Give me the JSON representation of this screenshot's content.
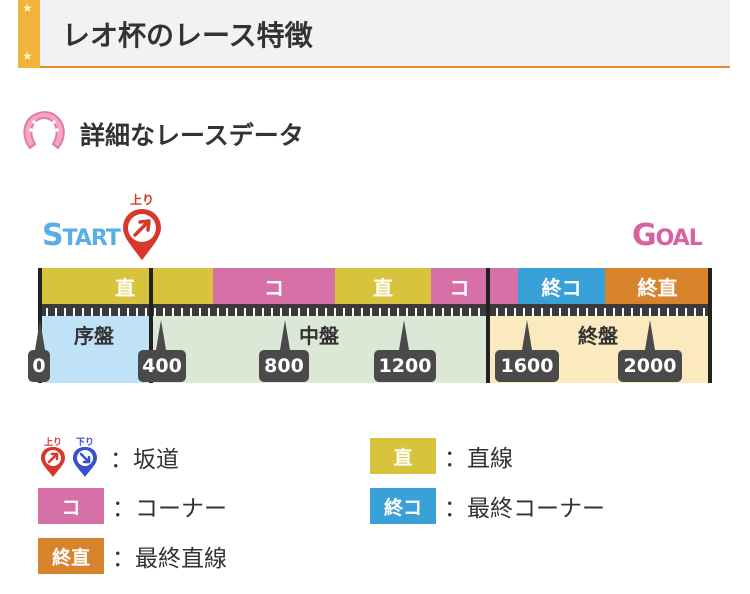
{
  "header": {
    "title": "レオ杯のレース特徴"
  },
  "section": {
    "title": "詳細なレースデータ"
  },
  "course": {
    "start_label_big": "S",
    "start_label_rest": "TART",
    "goal_label_big": "G",
    "goal_label_rest": "OAL",
    "slope_pin_label": "上り",
    "segments": [
      {
        "label": "直",
        "color": "#d8c43c"
      },
      {
        "label": "",
        "color": "#d8c43c"
      },
      {
        "label": "コ",
        "color": "#d870a8"
      },
      {
        "label": "直",
        "color": "#d8c43c"
      },
      {
        "label": "コ",
        "color": "#d870a8"
      },
      {
        "label": "",
        "color": "#d870a8"
      },
      {
        "label": "終コ",
        "color": "#3aa0d8"
      },
      {
        "label": "終直",
        "color": "#d8842c"
      }
    ],
    "phases": [
      {
        "label": "序盤",
        "color": "#bfe2f6"
      },
      {
        "label": "中盤",
        "color": "#dbe8d6"
      },
      {
        "label": "終盤",
        "color": "#fbeac0"
      }
    ],
    "distances": [
      "0",
      "400",
      "800",
      "1200",
      "1600",
      "2000"
    ]
  },
  "legend": {
    "slope": {
      "up": "上り",
      "down": "下り",
      "text": "：坂道"
    },
    "straight": {
      "chip": "直",
      "text": "：直線",
      "color": "#d8c43c"
    },
    "corner": {
      "chip": "コ",
      "text": "：コーナー",
      "color": "#d870a8"
    },
    "final_corner": {
      "chip": "終コ",
      "text": "：最終コーナー",
      "color": "#3aa0d8"
    },
    "final_straight": {
      "chip": "終直",
      "text": "：最終直線",
      "color": "#d8842c"
    }
  }
}
